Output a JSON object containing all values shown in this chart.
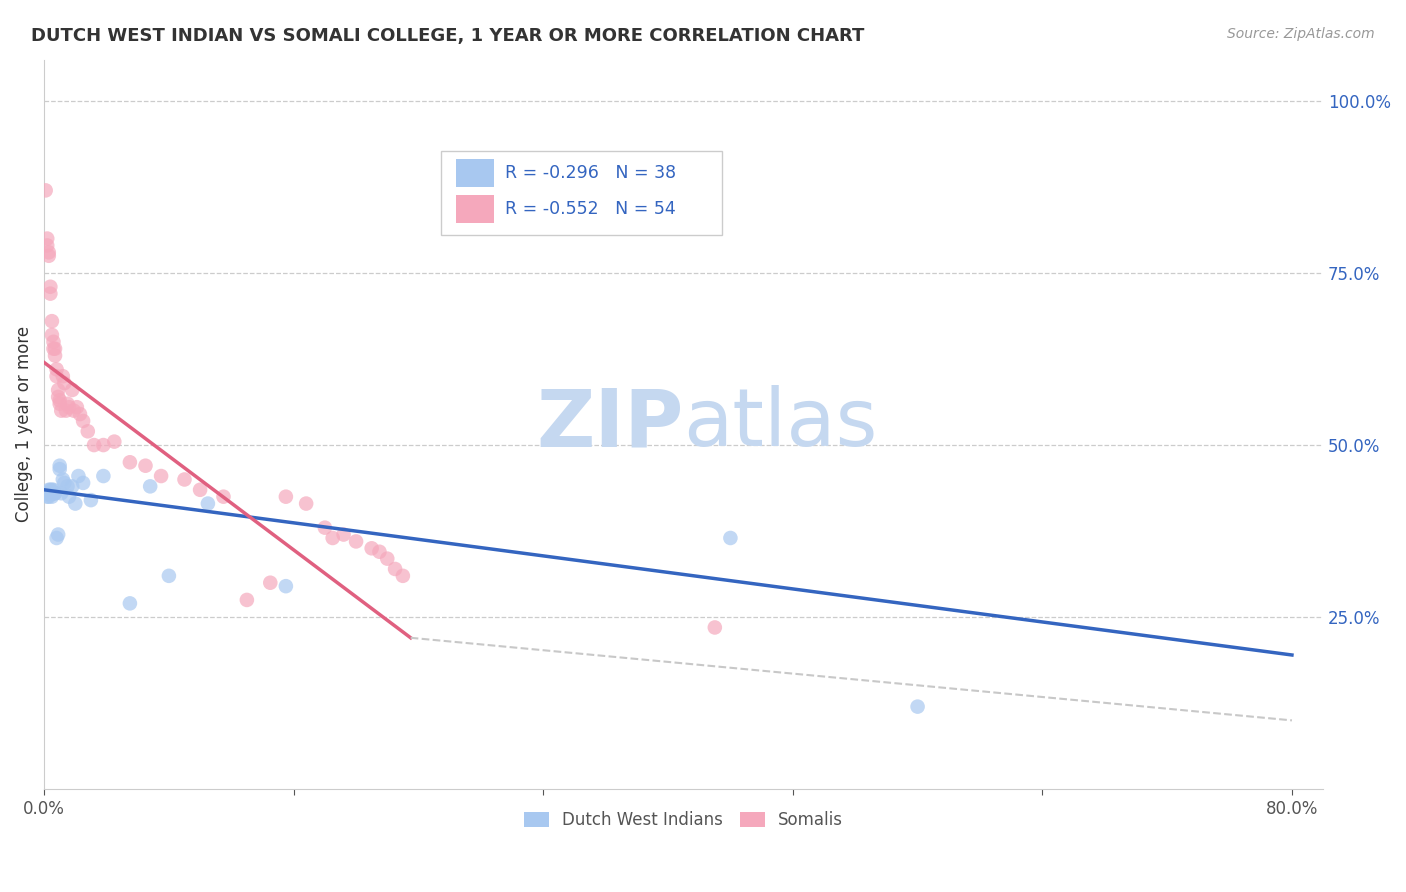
{
  "title": "DUTCH WEST INDIAN VS SOMALI COLLEGE, 1 YEAR OR MORE CORRELATION CHART",
  "source": "Source: ZipAtlas.com",
  "ylabel": "College, 1 year or more",
  "blue_R": "-0.296",
  "blue_N": "38",
  "pink_R": "-0.552",
  "pink_N": "54",
  "blue_color": "#a8c8f0",
  "pink_color": "#f5a8bc",
  "blue_line_color": "#3465c0",
  "pink_line_color": "#e06080",
  "trendline_extend_color": "#c8c8c8",
  "legend_label_blue": "Dutch West Indians",
  "legend_label_pink": "Somalis",
  "blue_points_x": [
    0.001,
    0.002,
    0.002,
    0.003,
    0.003,
    0.003,
    0.004,
    0.004,
    0.004,
    0.005,
    0.005,
    0.005,
    0.006,
    0.006,
    0.007,
    0.007,
    0.008,
    0.009,
    0.01,
    0.01,
    0.011,
    0.012,
    0.013,
    0.015,
    0.016,
    0.018,
    0.02,
    0.022,
    0.025,
    0.03,
    0.038,
    0.055,
    0.068,
    0.08,
    0.105,
    0.155,
    0.44,
    0.56
  ],
  "blue_points_y": [
    0.43,
    0.43,
    0.425,
    0.43,
    0.425,
    0.435,
    0.43,
    0.435,
    0.43,
    0.43,
    0.425,
    0.435,
    0.435,
    0.43,
    0.43,
    0.43,
    0.365,
    0.37,
    0.47,
    0.465,
    0.43,
    0.45,
    0.445,
    0.44,
    0.425,
    0.44,
    0.415,
    0.455,
    0.445,
    0.42,
    0.455,
    0.27,
    0.44,
    0.31,
    0.415,
    0.295,
    0.365,
    0.12
  ],
  "pink_points_x": [
    0.001,
    0.002,
    0.002,
    0.003,
    0.003,
    0.004,
    0.004,
    0.005,
    0.005,
    0.006,
    0.006,
    0.007,
    0.007,
    0.008,
    0.008,
    0.009,
    0.009,
    0.01,
    0.01,
    0.011,
    0.012,
    0.013,
    0.014,
    0.015,
    0.016,
    0.018,
    0.019,
    0.021,
    0.023,
    0.025,
    0.028,
    0.032,
    0.038,
    0.045,
    0.055,
    0.065,
    0.075,
    0.09,
    0.1,
    0.115,
    0.13,
    0.145,
    0.155,
    0.168,
    0.18,
    0.185,
    0.192,
    0.2,
    0.21,
    0.215,
    0.22,
    0.225,
    0.23,
    0.43
  ],
  "pink_points_y": [
    0.87,
    0.79,
    0.8,
    0.775,
    0.78,
    0.72,
    0.73,
    0.68,
    0.66,
    0.65,
    0.64,
    0.64,
    0.63,
    0.61,
    0.6,
    0.57,
    0.58,
    0.565,
    0.56,
    0.55,
    0.6,
    0.59,
    0.55,
    0.56,
    0.555,
    0.58,
    0.55,
    0.555,
    0.545,
    0.535,
    0.52,
    0.5,
    0.5,
    0.505,
    0.475,
    0.47,
    0.455,
    0.45,
    0.435,
    0.425,
    0.275,
    0.3,
    0.425,
    0.415,
    0.38,
    0.365,
    0.37,
    0.36,
    0.35,
    0.345,
    0.335,
    0.32,
    0.31,
    0.235
  ],
  "blue_line_x": [
    0.0,
    0.8
  ],
  "blue_line_y": [
    0.435,
    0.195
  ],
  "pink_line_x": [
    0.0,
    0.235
  ],
  "pink_line_y": [
    0.62,
    0.22
  ],
  "trendline_x": [
    0.235,
    0.8
  ],
  "trendline_y": [
    0.22,
    0.1
  ],
  "marker_size": 110,
  "alpha": 0.7,
  "watermark_zip": "ZIP",
  "watermark_atlas": "atlas",
  "watermark_color": "#c5d8f0",
  "watermark_fontsize": 58,
  "background_color": "#ffffff",
  "xlim": [
    0.0,
    0.82
  ],
  "ylim": [
    0.0,
    1.06
  ],
  "ytick_positions": [
    0.25,
    0.5,
    0.75,
    1.0
  ],
  "ytick_labels": [
    "25.0%",
    "50.0%",
    "75.0%",
    "100.0%"
  ],
  "xtick_positions": [
    0.0,
    0.16,
    0.32,
    0.48,
    0.64,
    0.8
  ],
  "xtick_labels": [
    "0.0%",
    "",
    "",
    "",
    "",
    "80.0%"
  ]
}
